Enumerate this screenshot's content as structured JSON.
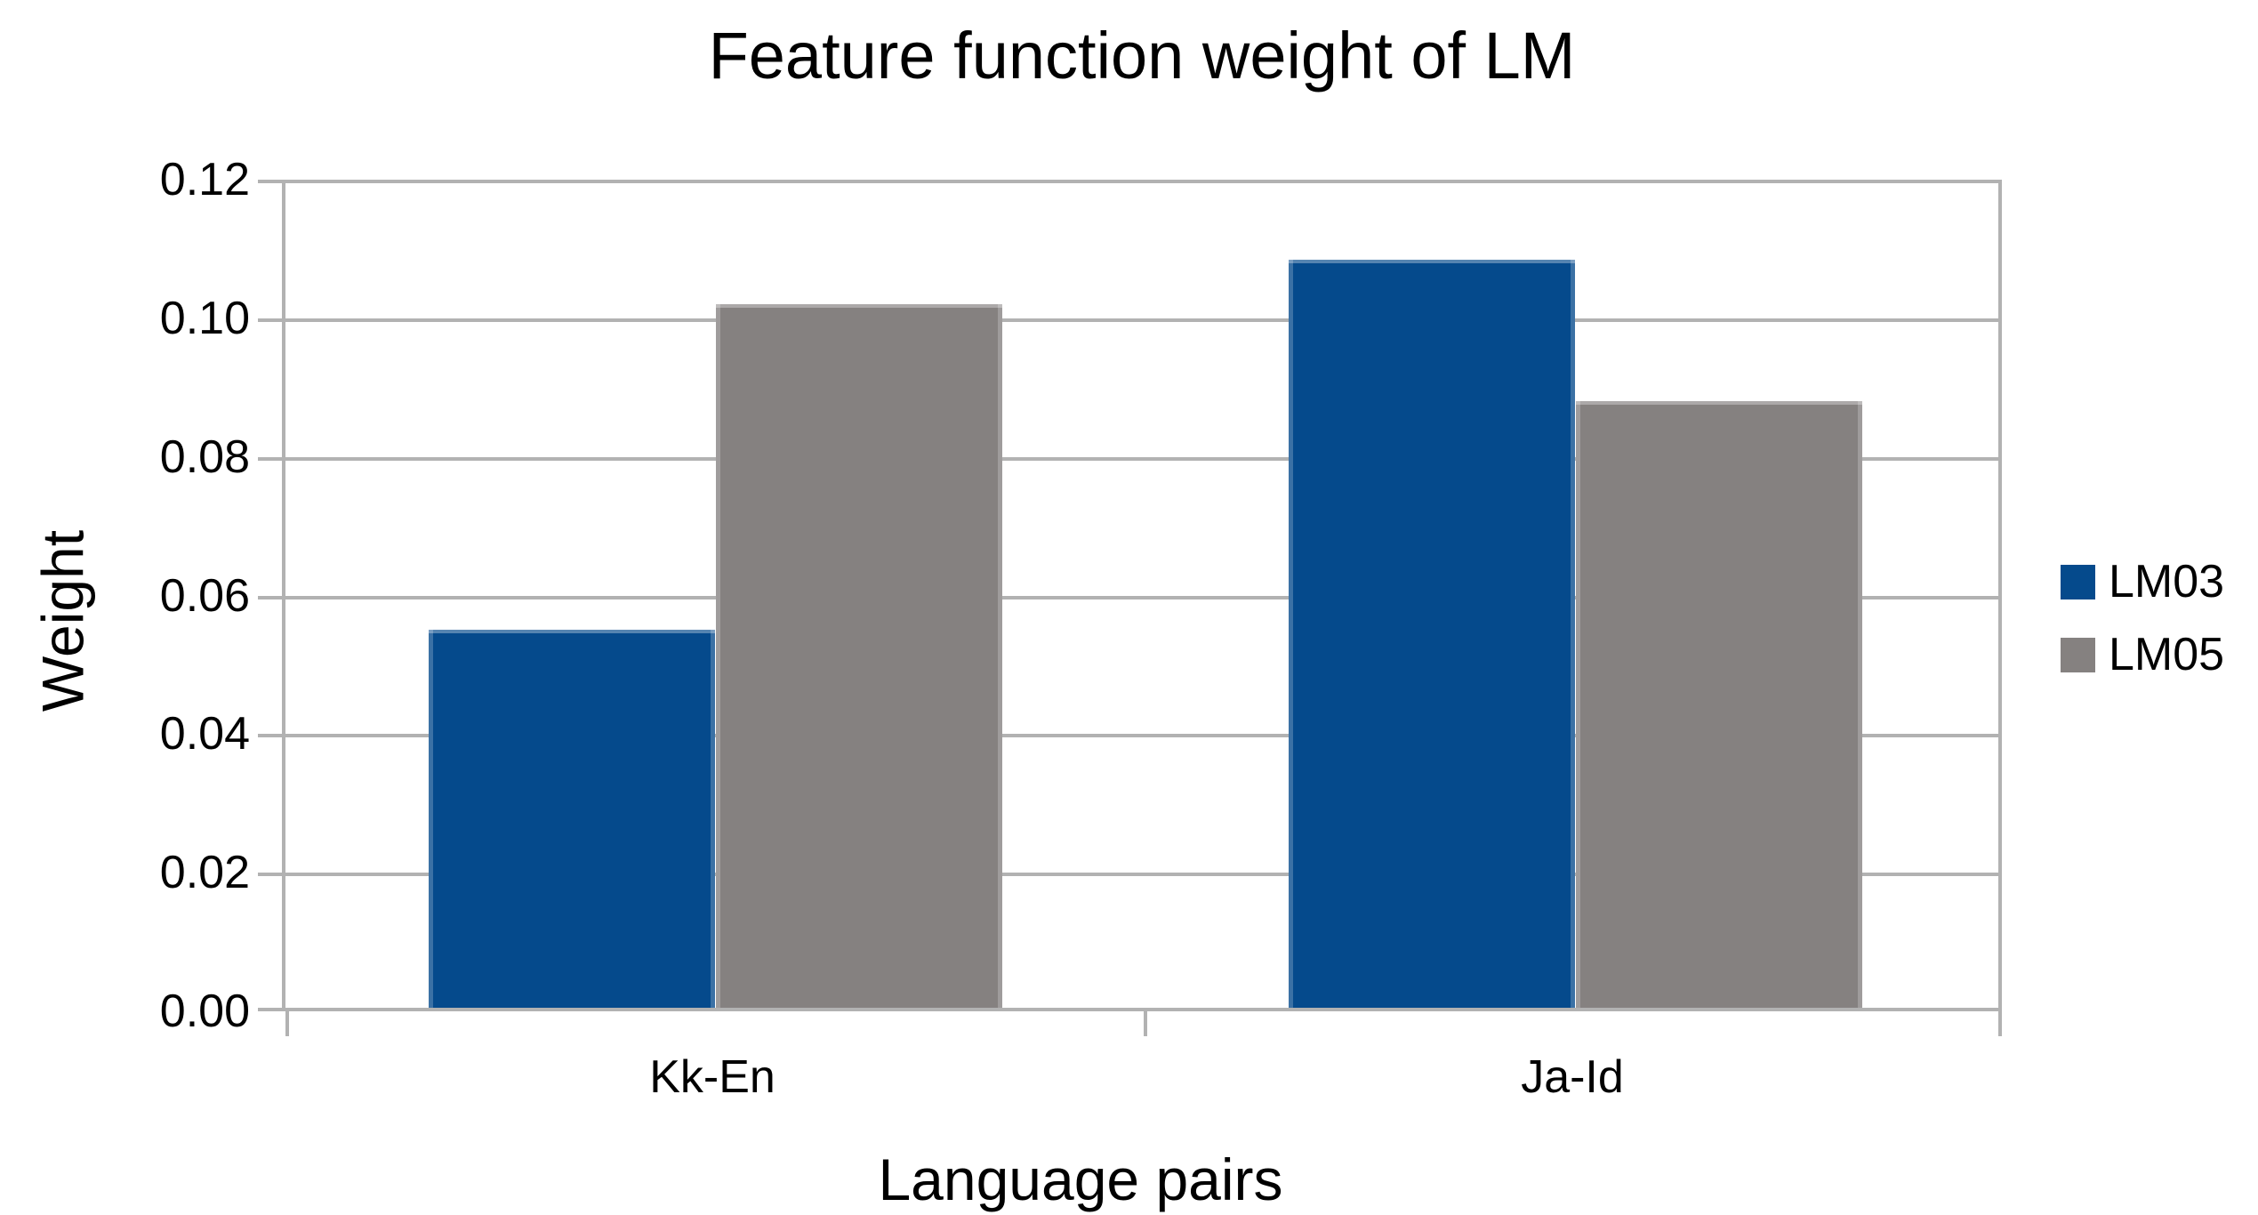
{
  "chart_data": {
    "type": "bar",
    "title": "Feature function weight of LM",
    "xlabel": "Language pairs",
    "ylabel": "Weight",
    "categories": [
      "Kk-En",
      "Ja-Id"
    ],
    "series": [
      {
        "name": "LM03",
        "color": "#054a8c",
        "values": [
          0.055,
          0.1085
        ]
      },
      {
        "name": "LM05",
        "color": "#858180",
        "values": [
          0.102,
          0.088
        ]
      }
    ],
    "ylim": [
      0,
      0.12
    ],
    "ytick_step": 0.02,
    "ytick_labels": [
      "0.00",
      "0.02",
      "0.04",
      "0.06",
      "0.08",
      "0.10",
      "0.12"
    ],
    "grid": "horizontal",
    "gridline_color": "#b2b2b2",
    "background_color": "#ffffff",
    "text_color": "#000000",
    "legend_position": "right"
  }
}
